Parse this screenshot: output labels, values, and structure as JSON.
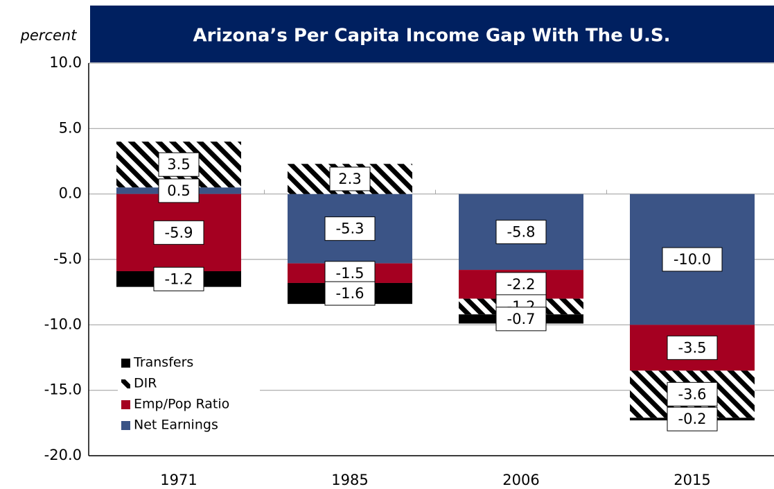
{
  "chart_data": {
    "type": "bar",
    "stacked": true,
    "title": "Arizona’s Per Capita Income Gap With The U.S.",
    "y_label": "percent",
    "categories": [
      "1971",
      "1985",
      "2006",
      "2015"
    ],
    "series": [
      {
        "name": "Net Earnings",
        "color": "#3b5486",
        "values": [
          0.5,
          -5.3,
          -5.8,
          -10.0
        ],
        "value_labels": [
          "0.5",
          "-5.3",
          "-5.8",
          "-10.0"
        ]
      },
      {
        "name": "Emp/Pop Ratio",
        "color": "#a50021",
        "values": [
          -5.9,
          -1.5,
          -2.2,
          -3.5
        ],
        "value_labels": [
          "-5.9",
          "-1.5",
          "-2.2",
          "-3.5"
        ]
      },
      {
        "name": "DIR",
        "color": "hatch",
        "values": [
          3.5,
          2.3,
          -1.2,
          -3.6
        ],
        "value_labels": [
          "3.5",
          "2.3",
          "-1.2",
          "-3.6"
        ]
      },
      {
        "name": "Transfers",
        "color": "#000000",
        "values": [
          -1.2,
          -1.6,
          -0.7,
          -0.2
        ],
        "value_labels": [
          "-1.2",
          "-1.6",
          "-0.7",
          "-0.2"
        ]
      }
    ],
    "ylim": [
      -20,
      10
    ],
    "yticks": [
      {
        "value": -20,
        "label": "-20.0"
      },
      {
        "value": -15,
        "label": "-15.0"
      },
      {
        "value": -10,
        "label": "-10.0"
      },
      {
        "value": -5,
        "label": "-5.0"
      },
      {
        "value": 0,
        "label": "0.0"
      },
      {
        "value": 5,
        "label": "5.0"
      },
      {
        "value": 10,
        "label": "10.0"
      }
    ],
    "grid": true
  }
}
